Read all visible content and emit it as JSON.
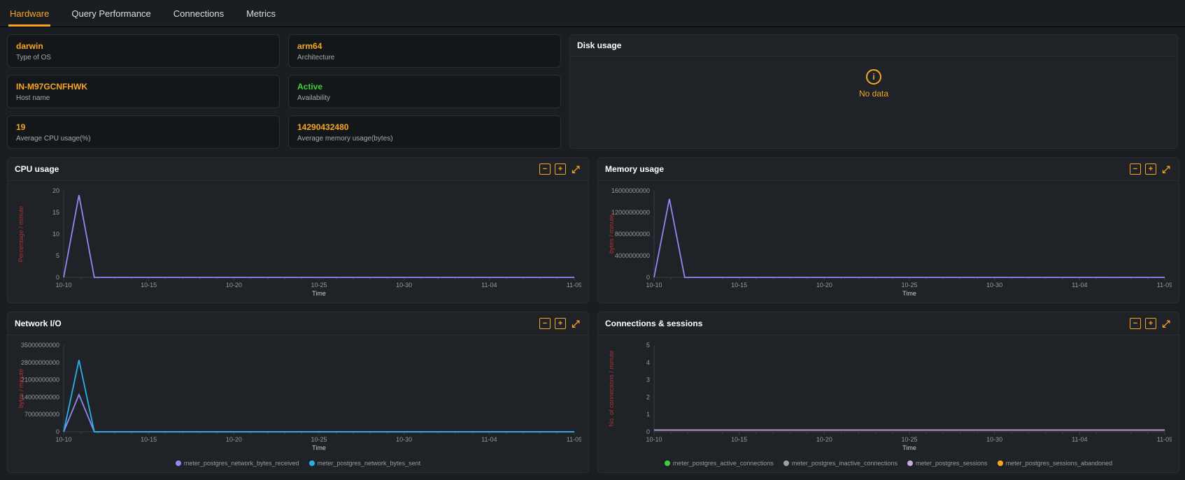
{
  "tabs": [
    {
      "label": "Hardware",
      "active": true
    },
    {
      "label": "Query Performance",
      "active": false
    },
    {
      "label": "Connections",
      "active": false
    },
    {
      "label": "Metrics",
      "active": false
    }
  ],
  "stats": {
    "col1": [
      {
        "value": "darwin",
        "label": "Type of OS",
        "color": "orange"
      },
      {
        "value": "IN-M97GCNFHWK",
        "label": "Host name",
        "color": "orange"
      },
      {
        "value": "19",
        "label": "Average CPU usage(%)",
        "color": "orange"
      }
    ],
    "col2": [
      {
        "value": "arm64",
        "label": "Architecture",
        "color": "orange"
      },
      {
        "value": "Active",
        "label": "Availability",
        "color": "green"
      },
      {
        "value": "14290432480",
        "label": "Average memory usage(bytes)",
        "color": "orange"
      }
    ]
  },
  "disk_panel": {
    "title": "Disk usage",
    "nodata_text": "No data"
  },
  "colors": {
    "accent": "#f5a623",
    "grid": "#3a3e44",
    "axis": "#888",
    "bg": "#1f2328",
    "line_purple": "#8c8cf0",
    "line_cyan": "#2cb0e4",
    "line_green": "#3ecf3e",
    "line_grey": "#9e9e9e",
    "line_lav": "#c9a9e0",
    "line_orange": "#f5a623"
  },
  "x_ticks": [
    "10-10",
    "10-15",
    "10-20",
    "10-25",
    "10-30",
    "11-04",
    "11-09"
  ],
  "x_minor_per_major": 4,
  "cpu_chart": {
    "title": "CPU usage",
    "ylabel": "Percentage / minute",
    "xlabel": "Time",
    "ytick_step": 5,
    "ylim": [
      0,
      20
    ],
    "series": [
      {
        "color_key": "line_purple",
        "points": [
          [
            0,
            0
          ],
          [
            1,
            19
          ],
          [
            2,
            0
          ]
        ],
        "baseline_to_end": true
      }
    ]
  },
  "mem_chart": {
    "title": "Memory usage",
    "ylabel": "bytes / minute",
    "xlabel": "Time",
    "ytick_step": 4000000000,
    "ylim": [
      0,
      16000000000
    ],
    "series": [
      {
        "color_key": "line_purple",
        "points": [
          [
            0,
            0
          ],
          [
            1,
            14500000000
          ],
          [
            2,
            0
          ]
        ],
        "baseline_to_end": true
      }
    ]
  },
  "net_chart": {
    "title": "Network I/O",
    "ylabel": "bytes / minute",
    "xlabel": "Time",
    "ytick_step": 7000000000,
    "ylim": [
      0,
      35000000000
    ],
    "series": [
      {
        "color_key": "line_purple",
        "points": [
          [
            0,
            0
          ],
          [
            1,
            15000000000
          ],
          [
            2,
            0
          ]
        ],
        "baseline_to_end": true
      },
      {
        "color_key": "line_cyan",
        "points": [
          [
            0,
            0
          ],
          [
            1,
            29000000000
          ],
          [
            2,
            0
          ]
        ],
        "baseline_to_end": true
      }
    ],
    "legend": [
      {
        "color_key": "line_purple",
        "text": "meter_postgres_network_bytes_received"
      },
      {
        "color_key": "line_cyan",
        "text": "meter_postgres_network_bytes_sent"
      }
    ]
  },
  "conn_chart": {
    "title": "Connections & sessions",
    "ylabel": "No. of connections / minute",
    "xlabel": "Time",
    "ytick_step": 1,
    "ylim": [
      0,
      5
    ],
    "series": [
      {
        "color_key": "line_lav",
        "points": [],
        "baseline_to_end": true,
        "flat_value": 0.1
      }
    ],
    "legend": [
      {
        "color_key": "line_green",
        "text": "meter_postgres_active_connections"
      },
      {
        "color_key": "line_grey",
        "text": "meter_postgres_inactive_connections"
      },
      {
        "color_key": "line_lav",
        "text": "meter_postgres_sessions"
      },
      {
        "color_key": "line_orange",
        "text": "meter_postgres_sessions_abandoned"
      }
    ]
  }
}
